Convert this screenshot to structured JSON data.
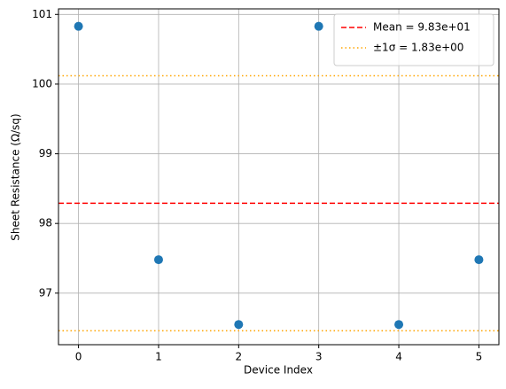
{
  "chart_data": {
    "type": "scatter",
    "x_label": "Device Index",
    "y_label": "Sheet Resistance (Ω/sq)",
    "x": [
      0,
      1,
      2,
      3,
      4,
      5
    ],
    "series": [
      {
        "color": "#1f77b4",
        "values": [
          100.83,
          97.48,
          96.55,
          100.83,
          96.55,
          97.48
        ]
      }
    ],
    "hlines": [
      {
        "name": "Mean = 9.83e+01",
        "color": "red",
        "style": "dashed",
        "values": [
          98.29
        ]
      },
      {
        "name": "±1σ = 1.83e+00",
        "color": "orange",
        "style": "dotted",
        "values": [
          100.12,
          96.46
        ]
      }
    ],
    "xlim": [
      -0.25,
      5.25
    ],
    "xticks": [
      0,
      1,
      2,
      3,
      4,
      5
    ],
    "ylim": [
      96.26,
      101.08
    ],
    "yticks": [
      97,
      98,
      99,
      100,
      101
    ],
    "grid": true,
    "legend": "upper right"
  }
}
